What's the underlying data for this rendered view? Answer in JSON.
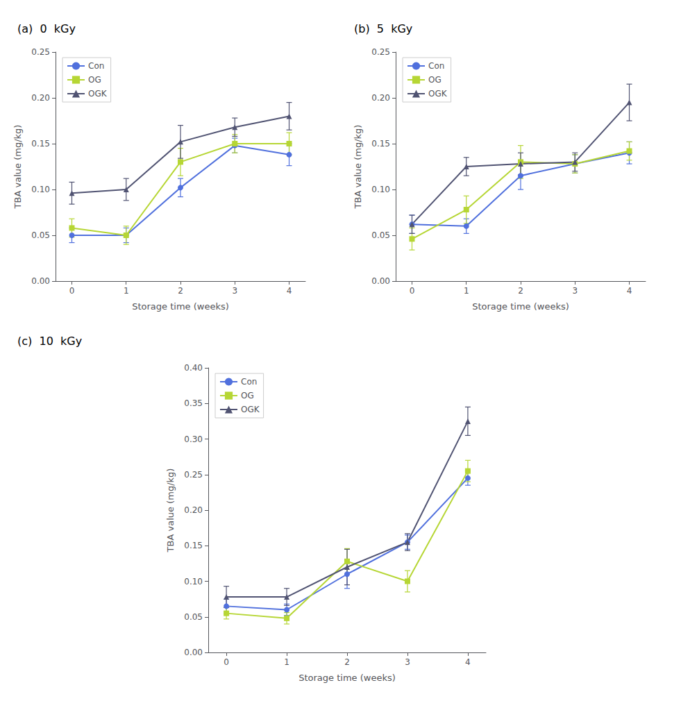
{
  "chart_data": [
    {
      "type": "line",
      "title": "(a)  0  kGy",
      "xlabel": "Storage time (weeks)",
      "ylabel": "TBA value (mg/kg)",
      "x": [
        0,
        1,
        2,
        3,
        4
      ],
      "xlim": [
        -0.3,
        4.3
      ],
      "xticks": [
        0,
        1,
        2,
        3,
        4
      ],
      "ylim": [
        0.0,
        0.25
      ],
      "yticks": [
        {
          "value": 0.0,
          "label": "0.00"
        },
        0.05,
        {
          "value": 0.1,
          "label": "0.10"
        },
        0.15,
        {
          "value": 0.2,
          "label": "0.20"
        },
        0.25
      ],
      "grid": false,
      "legend": "upper left",
      "series": [
        {
          "name": "Con",
          "marker": "circle",
          "values": [
            0.05,
            0.05,
            0.102,
            0.148,
            0.138
          ],
          "yerr": [
            0.008,
            0.008,
            0.01,
            0.008,
            0.012
          ]
        },
        {
          "name": "OG",
          "marker": "square",
          "values": [
            0.058,
            0.05,
            0.13,
            0.15,
            0.15
          ],
          "yerr": [
            0.01,
            0.01,
            0.015,
            0.01,
            0.012
          ]
        },
        {
          "name": "OGK",
          "marker": "triangle",
          "values": [
            0.096,
            0.1,
            0.152,
            0.168,
            0.18
          ],
          "yerr": [
            0.012,
            0.012,
            0.018,
            0.01,
            0.015
          ]
        }
      ]
    },
    {
      "type": "line",
      "title": "(b)  5  kGy",
      "xlabel": "Storage time (weeks)",
      "ylabel": "TBA value (mg/kg)",
      "x": [
        0,
        1,
        2,
        3,
        4
      ],
      "xlim": [
        -0.3,
        4.3
      ],
      "xticks": [
        0,
        1,
        2,
        3,
        4
      ],
      "ylim": [
        0.0,
        0.25
      ],
      "yticks": [
        {
          "value": 0.0,
          "label": "0.00"
        },
        0.05,
        {
          "value": 0.1,
          "label": "0.10"
        },
        0.15,
        {
          "value": 0.2,
          "label": "0.20"
        },
        0.25
      ],
      "grid": false,
      "legend": "upper left",
      "series": [
        {
          "name": "Con",
          "marker": "circle",
          "values": [
            0.062,
            0.06,
            0.115,
            0.128,
            0.14
          ],
          "yerr": [
            0.01,
            0.008,
            0.015,
            0.01,
            0.012
          ]
        },
        {
          "name": "OG",
          "marker": "square",
          "values": [
            0.046,
            0.078,
            0.13,
            0.128,
            0.142
          ],
          "yerr": [
            0.012,
            0.015,
            0.018,
            0.01,
            0.01
          ]
        },
        {
          "name": "OGK",
          "marker": "triangle",
          "values": [
            0.062,
            0.125,
            0.128,
            0.13,
            0.195
          ],
          "yerr": [
            0.01,
            0.01,
            0.012,
            0.01,
            0.02
          ]
        }
      ]
    },
    {
      "type": "line",
      "title": "(c)  10  kGy",
      "xlabel": "Storage time (weeks)",
      "ylabel": "TBA value (mg/kg)",
      "x": [
        0,
        1,
        2,
        3,
        4
      ],
      "xlim": [
        -0.3,
        4.3
      ],
      "xticks": [
        0,
        1,
        2,
        3,
        4
      ],
      "ylim": [
        0.0,
        0.4
      ],
      "yticks": [
        {
          "value": 0.0,
          "label": "0.00"
        },
        0.05,
        {
          "value": 0.1,
          "label": "0.10"
        },
        0.15,
        {
          "value": 0.2,
          "label": "0.20"
        },
        0.25,
        {
          "value": 0.3,
          "label": "0.30"
        },
        0.35,
        {
          "value": 0.4,
          "label": "0.40"
        }
      ],
      "grid": false,
      "legend": "upper left",
      "series": [
        {
          "name": "Con",
          "marker": "circle",
          "values": [
            0.065,
            0.06,
            0.11,
            0.155,
            0.245
          ],
          "yerr": [
            0.01,
            0.008,
            0.02,
            0.01,
            0.01
          ]
        },
        {
          "name": "OG",
          "marker": "square",
          "values": [
            0.055,
            0.048,
            0.128,
            0.1,
            0.255
          ],
          "yerr": [
            0.008,
            0.008,
            0.018,
            0.015,
            0.015
          ]
        },
        {
          "name": "OGK",
          "marker": "triangle",
          "values": [
            0.078,
            0.078,
            0.12,
            0.155,
            0.325
          ],
          "yerr": [
            0.015,
            0.012,
            0.025,
            0.012,
            0.02
          ]
        }
      ]
    }
  ]
}
